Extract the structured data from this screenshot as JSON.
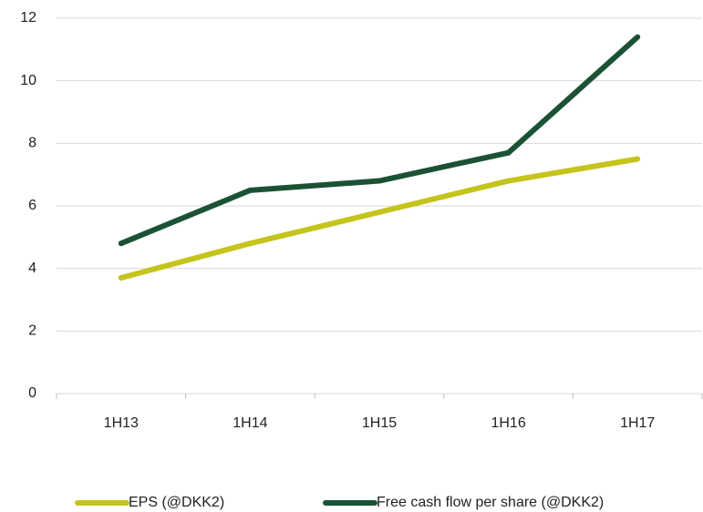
{
  "chart_data": {
    "type": "line",
    "categories": [
      "1H13",
      "1H14",
      "1H15",
      "1H16",
      "1H17"
    ],
    "series": [
      {
        "name": "EPS (@DKK2)",
        "color": "#c5c41c",
        "values": [
          3.7,
          4.8,
          5.8,
          6.8,
          7.5
        ]
      },
      {
        "name": "Free cash flow per share (@DKK2)",
        "color": "#1b5236",
        "values": [
          4.8,
          6.5,
          6.8,
          7.7,
          11.4
        ]
      }
    ],
    "ylim": [
      0,
      12
    ],
    "yticks": [
      0,
      2,
      4,
      6,
      8,
      10,
      12
    ],
    "grid": true,
    "legend": "bottom"
  }
}
